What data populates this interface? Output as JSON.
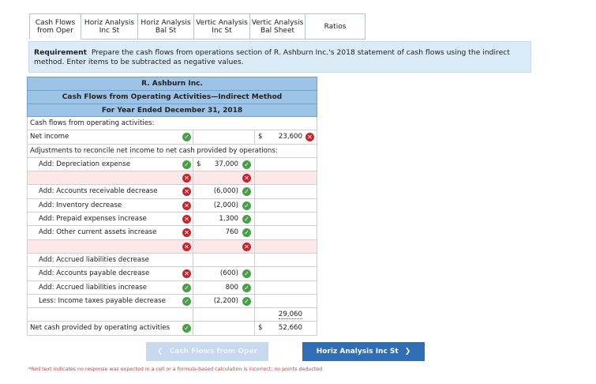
{
  "tabs": [
    {
      "label": "Cash Flows\nfrom Oper"
    },
    {
      "label": "Horiz Analysis\nInc St"
    },
    {
      "label": "Horiz Analysis\nBal St"
    },
    {
      "label": "Vertic Analysis\nInc St"
    },
    {
      "label": "Vertic Analysis\nBal Sheet"
    },
    {
      "label": "Ratios"
    }
  ],
  "requirement": {
    "label": "Requirement",
    "text": "Prepare the cash flows from operations section of R. Ashburn Inc.'s 2018 statement of cash flows using the indirect method.  Enter items to be subtracted as negative values."
  },
  "sheet": {
    "company": "R. Ashburn Inc.",
    "title": "Cash Flows from Operating Activities—Indirect Method",
    "period": "For Year Ended December 31, 2018",
    "rows": [
      {
        "label": "Cash flows from operating activities:",
        "col2": "",
        "col3": "",
        "status1": "",
        "status2": "",
        "status3": ""
      },
      {
        "label": "Net income",
        "col2": "",
        "col3": "23,600",
        "dollar3": "$",
        "status1": "ok",
        "status3": "bad"
      },
      {
        "label": "Adjustments to reconcile net income to net cash provided by operations:",
        "col2": "",
        "col3": ""
      },
      {
        "label": "Add:  Depreciation expense",
        "col2": "37,000",
        "dollar2": "$",
        "status1": "ok",
        "status2": "ok"
      },
      {
        "label": "",
        "col2": "",
        "status1": "bad",
        "status2": "bad",
        "pink": true
      },
      {
        "label": "Add:  Accounts receivable decrease",
        "col2": "(6,000)",
        "status1": "bad",
        "status2": "ok"
      },
      {
        "label": "Add:  Inventory decrease",
        "col2": "(2,000)",
        "status1": "bad",
        "status2": "ok"
      },
      {
        "label": "Add:  Prepaid expenses increase",
        "col2": "1,300",
        "status1": "bad",
        "status2": "ok"
      },
      {
        "label": "Add:  Other current assets increase",
        "col2": "760",
        "status1": "bad",
        "status2": "ok"
      },
      {
        "label": "",
        "col2": "",
        "status1": "bad",
        "status2": "bad",
        "pink": true
      },
      {
        "label": "Add:  Accrued liabilities decrease",
        "col2": ""
      },
      {
        "label": "Add:  Accounts payable decrease",
        "col2": "(600)",
        "status1": "bad",
        "status2": "ok"
      },
      {
        "label": "Add:  Accrued liabilities increase",
        "col2": "800",
        "status1": "ok",
        "status2": "ok"
      },
      {
        "label": "Less:  Income taxes payable decrease",
        "col2": "(2,200)",
        "status1": "ok",
        "status2": "ok"
      },
      {
        "label": "",
        "col2": "",
        "col3": "29,060"
      },
      {
        "label": "Net cash provided by operating activities",
        "col2": "",
        "col3": "52,660",
        "dollar3": "$",
        "status1": "ok"
      }
    ]
  },
  "buttons": {
    "prev": "Cash Flows from Oper",
    "next": "Horiz Analysis Inc St"
  },
  "footnote": "*Red text indicates no response was expected in a cell or a formula-based calculation is incorrect; no points deducted."
}
